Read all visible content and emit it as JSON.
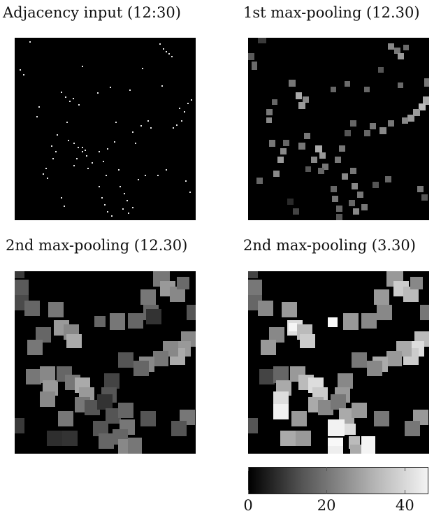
{
  "panels": [
    {
      "id": "adj",
      "title": "Adjacency input (12:30)"
    },
    {
      "id": "mp1",
      "title": "1st max-pooling (12.30)"
    },
    {
      "id": "mp2a",
      "title": "2nd max-pooling (12.30)"
    },
    {
      "id": "mp2b",
      "title": "2nd max-pooling (3.30)"
    }
  ],
  "colorbar": {
    "min": 0,
    "max": 46,
    "ticks": [
      "0",
      "20",
      "40"
    ],
    "tick_values": [
      0,
      20,
      40
    ],
    "colors": [
      "#000000",
      "#555555",
      "#b4b4b4",
      "#f3f3f3"
    ]
  }
}
